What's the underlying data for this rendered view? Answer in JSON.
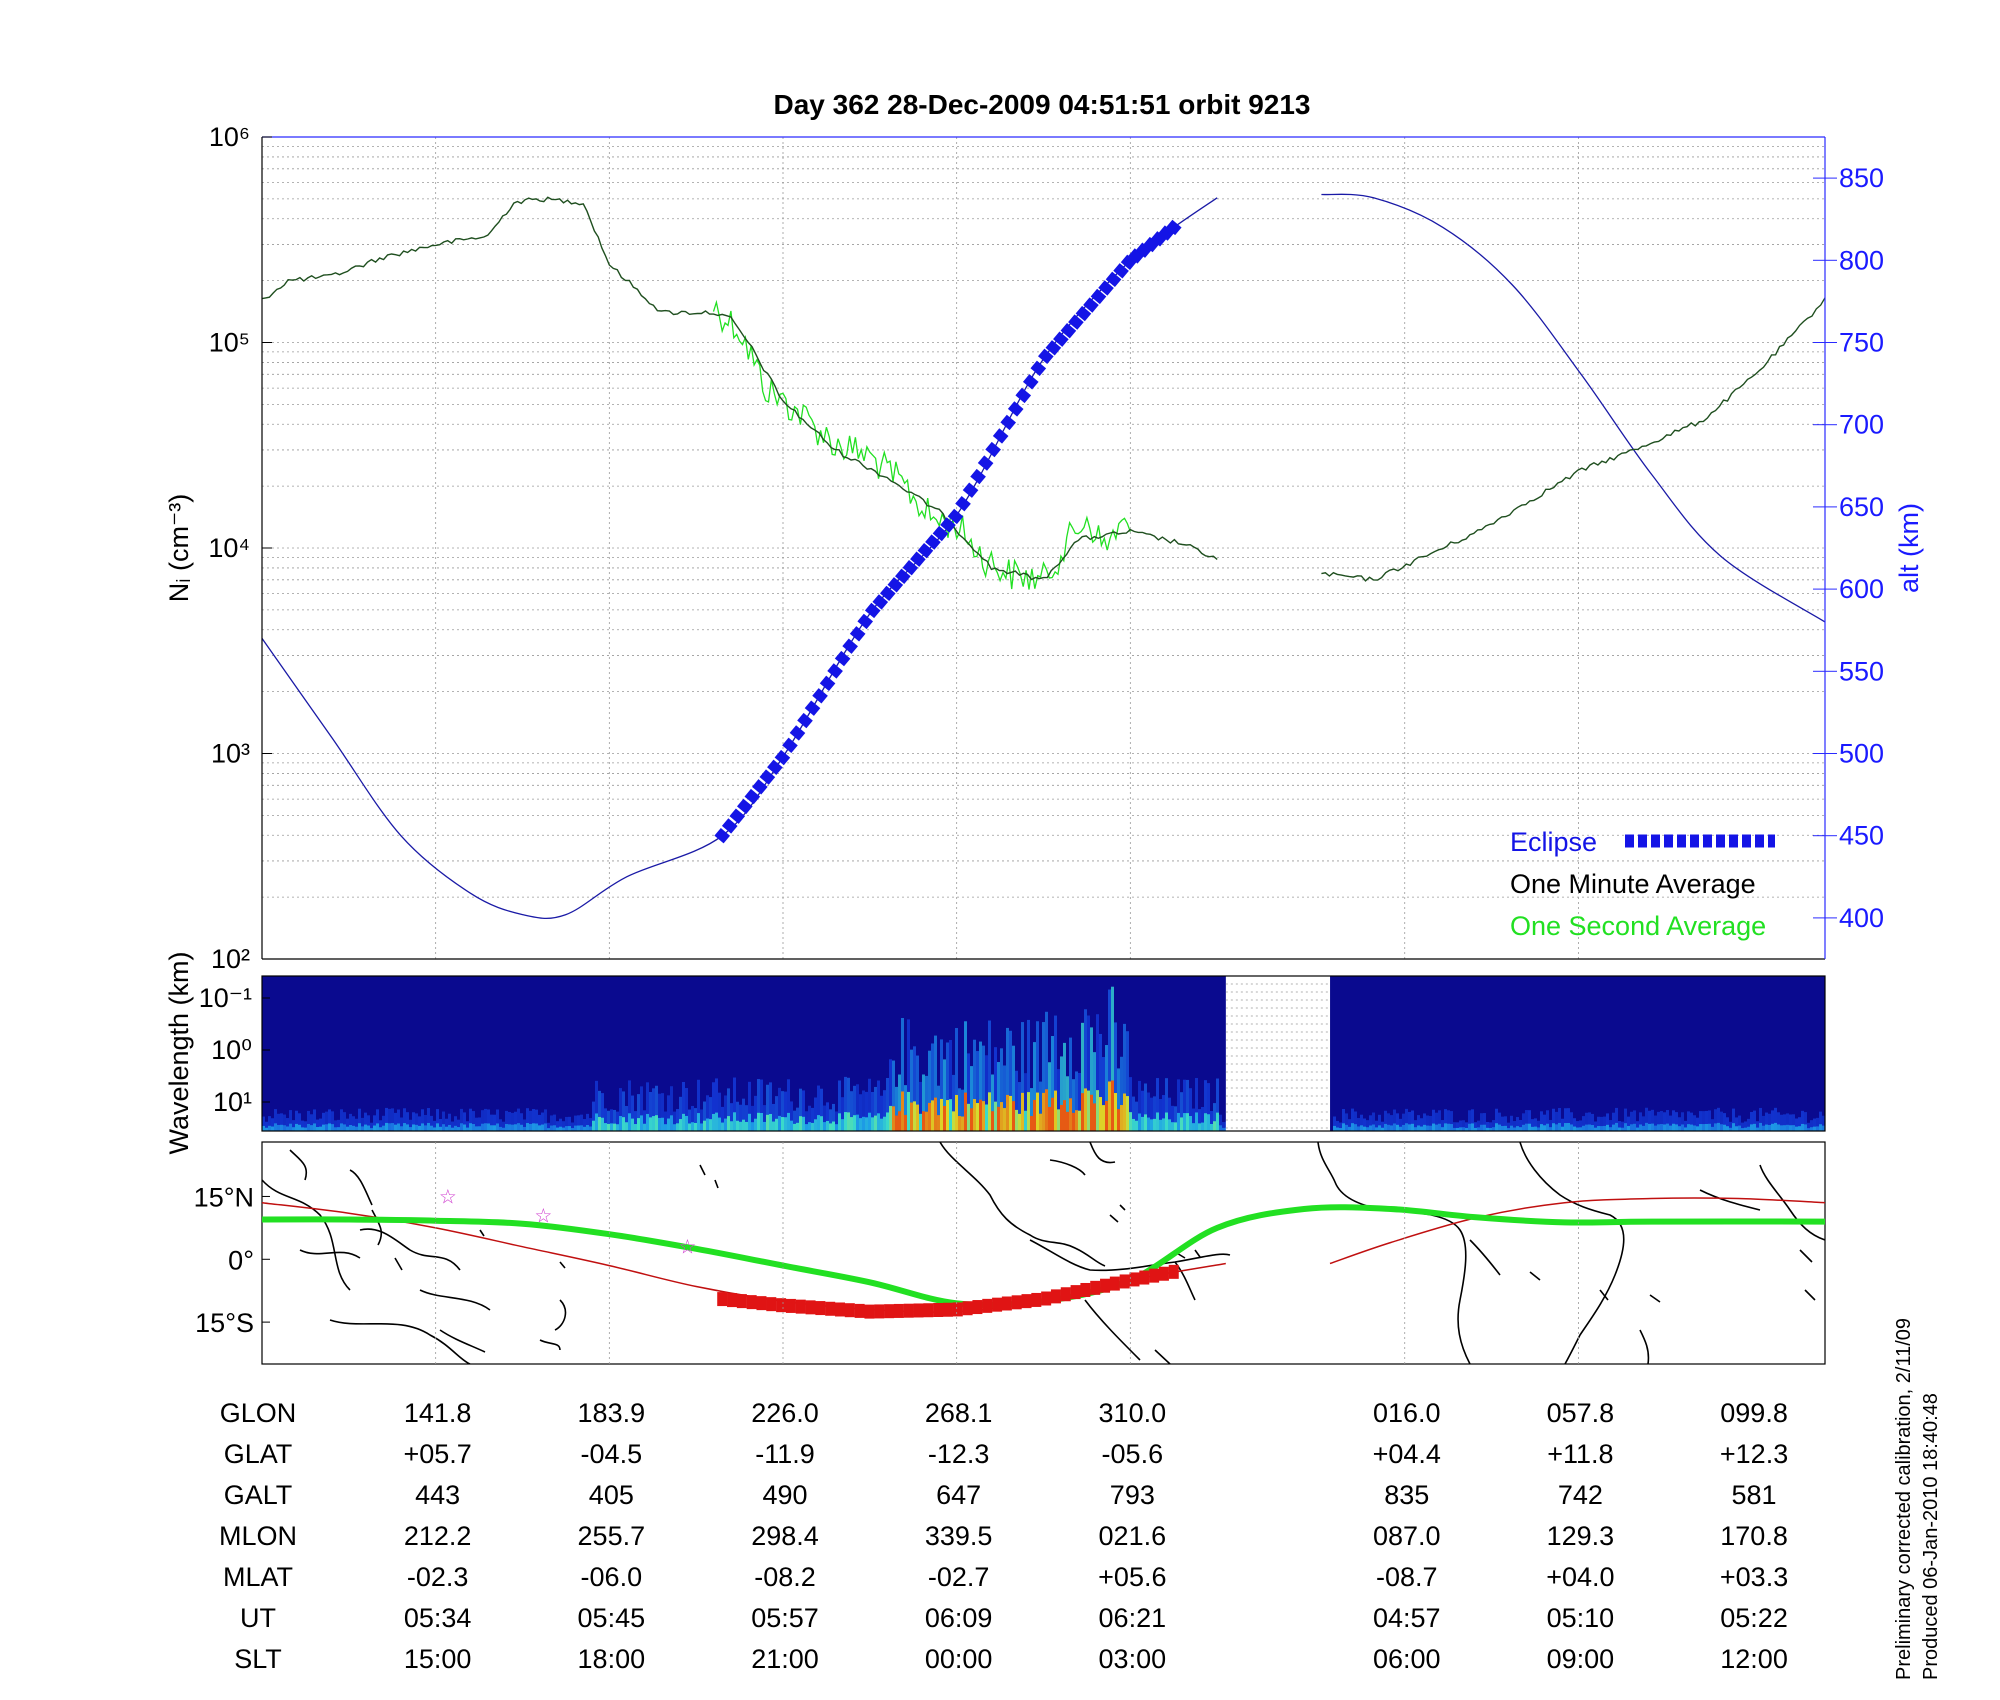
{
  "title": "Day 362  28-Dec-2009 04:51:51   orbit 9213",
  "footnote": [
    "Preliminary corrected calibration, 2/11/09",
    "Produced 06-Jan-2010 18:40:48"
  ],
  "colors": {
    "eclipse": "#1414e6",
    "alt_line": "#1a1aa6",
    "minute_avg": "#1f4f1f",
    "second_avg": "#22e022",
    "map_track": "#22e022",
    "mag_equator": "#c01010",
    "map_eclipse": "#e01414",
    "star": "#d040d0"
  },
  "chart_data": [
    {
      "type": "line",
      "name": "density-panel",
      "ylabel": "Nᵢ (cm⁻³)",
      "y2label": "alt (km)",
      "yscale": "log",
      "ylim": [
        100,
        1000000
      ],
      "y_ticks": [
        "10²",
        "10³",
        "10⁴",
        "10⁵",
        "10⁶"
      ],
      "y2lim": [
        375,
        875
      ],
      "y2_ticks": [
        400,
        450,
        500,
        550,
        600,
        650,
        700,
        750,
        800,
        850
      ],
      "grid": true,
      "legend_position": "bottom-right",
      "legend": [
        "Eclipse",
        "One Minute Average",
        "One Second Average"
      ],
      "series": [
        {
          "name": "One Minute Average",
          "segments": [
            [
              [
                0,
                160000
              ],
              [
                0.15,
                200000
              ],
              [
                0.4,
                210000
              ],
              [
                0.7,
                260000
              ],
              [
                1.0,
                300000
              ],
              [
                1.3,
                330000
              ],
              [
                1.45,
                480000
              ],
              [
                1.6,
                500000
              ],
              [
                1.85,
                480000
              ],
              [
                2.0,
                240000
              ],
              [
                2.3,
                140000
              ],
              [
                2.6,
                140000
              ],
              [
                2.7,
                130000
              ],
              [
                2.8,
                100000
              ],
              [
                3.0,
                52000
              ],
              [
                3.3,
                30000
              ],
              [
                3.6,
                22000
              ],
              [
                3.9,
                15000
              ],
              [
                4.1,
                10000
              ],
              [
                4.2,
                8000
              ],
              [
                4.5,
                7000
              ],
              [
                4.7,
                11000
              ],
              [
                5.0,
                12000
              ],
              [
                5.3,
                10500
              ],
              [
                5.5,
                8800
              ]
            ],
            [
              [
                6.1,
                7500
              ],
              [
                6.4,
                7000
              ],
              [
                6.8,
                10000
              ],
              [
                7.0,
                12000
              ],
              [
                7.3,
                17000
              ],
              [
                7.6,
                24000
              ],
              [
                7.9,
                30000
              ],
              [
                8.3,
                42000
              ],
              [
                8.6,
                70000
              ],
              [
                8.9,
                130000
              ],
              [
                9.0,
                165000
              ]
            ]
          ]
        },
        {
          "name": "One Second Average",
          "segments": [
            [
              [
                2.6,
                150000
              ],
              [
                2.75,
                115000
              ],
              [
                2.9,
                60000
              ],
              [
                3.1,
                45000
              ],
              [
                3.3,
                32000
              ],
              [
                3.5,
                28000
              ],
              [
                3.7,
                20000
              ],
              [
                3.85,
                14000
              ],
              [
                4.0,
                13000
              ],
              [
                4.15,
                9000
              ],
              [
                4.3,
                7500
              ],
              [
                4.5,
                7000
              ],
              [
                4.65,
                11000
              ],
              [
                4.75,
                14000
              ],
              [
                4.85,
                10000
              ],
              [
                4.95,
                13000
              ],
              [
                5.0,
                12000
              ]
            ]
          ]
        },
        {
          "name": "altitude",
          "axis": "y2",
          "segments": [
            [
              [
                0,
                570
              ],
              [
                0.4,
                510
              ],
              [
                0.8,
                450
              ],
              [
                1.2,
                415
              ],
              [
                1.5,
                402
              ],
              [
                1.75,
                402
              ],
              [
                2.1,
                425
              ],
              [
                2.65,
                450
              ],
              [
                3.0,
                498
              ],
              [
                3.5,
                585
              ],
              [
                4.0,
                645
              ],
              [
                4.5,
                740
              ],
              [
                5.0,
                800
              ],
              [
                5.25,
                820
              ],
              [
                5.5,
                838
              ]
            ],
            [
              [
                6.1,
                840
              ],
              [
                6.4,
                838
              ],
              [
                6.8,
                820
              ],
              [
                7.2,
                785
              ],
              [
                7.6,
                730
              ],
              [
                8.0,
                670
              ],
              [
                8.4,
                620
              ],
              [
                9.0,
                580
              ]
            ]
          ]
        },
        {
          "name": "Eclipse",
          "axis": "y2",
          "x_range": [
            2.65,
            5.25
          ],
          "y_range": [
            450,
            820
          ]
        }
      ]
    },
    {
      "type": "heatmap",
      "name": "wavelength-spectrogram",
      "ylabel": "Wavelength (km)",
      "y_ticks": [
        "10⁻¹",
        "10⁰",
        "10¹"
      ],
      "data_gap": [
        5.55,
        6.15
      ]
    },
    {
      "type": "scatter",
      "name": "orbit-map",
      "y_ticks": [
        "15°N",
        "0°",
        "15°S"
      ],
      "ylim": [
        -25,
        28
      ],
      "track": [
        [
          0,
          9.5
        ],
        [
          0.5,
          9.5
        ],
        [
          1.0,
          9.2
        ],
        [
          1.5,
          8.5
        ],
        [
          2.0,
          6.0
        ],
        [
          2.5,
          2.5
        ],
        [
          3.0,
          -1.5
        ],
        [
          3.5,
          -5.5
        ],
        [
          4.0,
          -10.5
        ],
        [
          4.5,
          -10.0
        ],
        [
          5.0,
          -5.0
        ],
        [
          5.5,
          7.5
        ],
        [
          6.0,
          12.0
        ],
        [
          6.5,
          12.0
        ],
        [
          7.0,
          10.0
        ],
        [
          7.5,
          8.8
        ],
        [
          8.0,
          9.0
        ],
        [
          9.0,
          9.0
        ]
      ],
      "magnetic_equator": [
        [
          [
            0,
            13.5
          ],
          [
            0.5,
            11.0
          ],
          [
            1.0,
            7.5
          ],
          [
            1.5,
            3.0
          ],
          [
            2.0,
            -1.5
          ],
          [
            2.5,
            -6.5
          ],
          [
            3.0,
            -10.0
          ],
          [
            3.5,
            -12.0
          ],
          [
            4.0,
            -12.5
          ],
          [
            4.5,
            -10.0
          ],
          [
            5.0,
            -5.0
          ],
          [
            5.55,
            -1.0
          ]
        ],
        [
          [
            6.15,
            -1.0
          ],
          [
            6.5,
            4.0
          ],
          [
            7.0,
            10.0
          ],
          [
            7.5,
            13.5
          ],
          [
            8.0,
            14.5
          ],
          [
            8.5,
            14.5
          ],
          [
            9.0,
            13.5
          ]
        ]
      ],
      "eclipse_track": [
        [
          2.65,
          -9.5
        ],
        [
          3.0,
          -11.0
        ],
        [
          3.5,
          -12.5
        ],
        [
          4.0,
          -12.0
        ],
        [
          4.5,
          -9.5
        ],
        [
          5.0,
          -5.0
        ],
        [
          5.25,
          -3.0
        ]
      ],
      "stars": [
        [
          1.07,
          15.0
        ],
        [
          1.62,
          10.5
        ],
        [
          2.45,
          3.0
        ]
      ]
    }
  ],
  "table": {
    "rows": [
      {
        "label": "GLON",
        "values": [
          "141.8",
          "183.9",
          "226.0",
          "268.1",
          "310.0",
          "016.0",
          "057.8",
          "099.8"
        ]
      },
      {
        "label": "GLAT",
        "values": [
          "+05.7",
          "-04.5",
          "-11.9",
          "-12.3",
          "-05.6",
          "+04.4",
          "+11.8",
          "+12.3"
        ]
      },
      {
        "label": "GALT",
        "values": [
          "443",
          "405",
          "490",
          "647",
          "793",
          "835",
          "742",
          "581"
        ]
      },
      {
        "label": "MLON",
        "values": [
          "212.2",
          "255.7",
          "298.4",
          "339.5",
          "021.6",
          "087.0",
          "129.3",
          "170.8"
        ]
      },
      {
        "label": "MLAT",
        "values": [
          "-02.3",
          "-06.0",
          "-08.2",
          "-02.7",
          "+05.6",
          "-08.7",
          "+04.0",
          "+03.3"
        ]
      },
      {
        "label": "UT",
        "values": [
          "05:34",
          "05:45",
          "05:57",
          "06:09",
          "06:21",
          "04:57",
          "05:10",
          "05:22"
        ]
      },
      {
        "label": "SLT",
        "values": [
          "15:00",
          "18:00",
          "21:00",
          "00:00",
          "03:00",
          "06:00",
          "09:00",
          "12:00"
        ]
      }
    ],
    "column_positions": [
      1,
      2,
      3,
      4,
      5,
      6.58,
      7.58,
      8.58
    ]
  }
}
